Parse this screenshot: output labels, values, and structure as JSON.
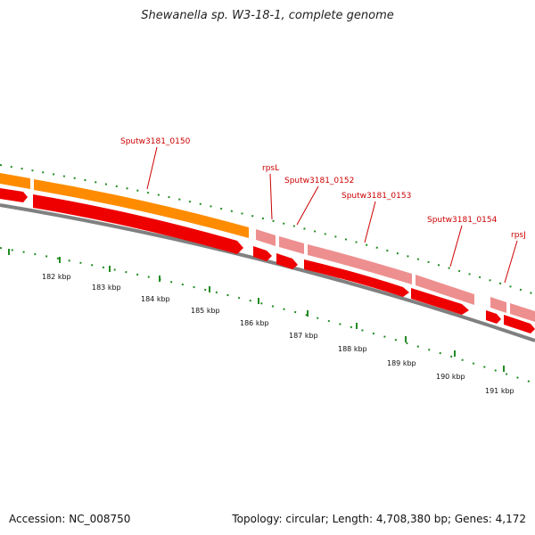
{
  "title": "Shewanella sp. W3-18-1, complete genome",
  "accession": "Accession: NC_008750",
  "info": "Topology: circular; Length: 4,708,380 bp; Genes: 4,172",
  "colors": {
    "cds_forward": "#ff8c00",
    "cds_forward_light": "#ee8f8f",
    "cds_reverse": "#ee0000",
    "backbone": "#808080",
    "tick": "#228b22",
    "label": "#cc0000"
  },
  "genes": [
    {
      "label": "Sputw3181_0150"
    },
    {
      "label": "rpsL"
    },
    {
      "label": "Sputw3181_0152"
    },
    {
      "label": "Sputw3181_0153"
    },
    {
      "label": "Sputw3181_0154"
    },
    {
      "label": "rpsJ"
    }
  ],
  "kbp_labels": [
    "182 kbp",
    "183 kbp",
    "184 kbp",
    "185 kbp",
    "186 kbp",
    "187 kbp",
    "188 kbp",
    "189 kbp",
    "190 kbp",
    "191 kbp"
  ]
}
